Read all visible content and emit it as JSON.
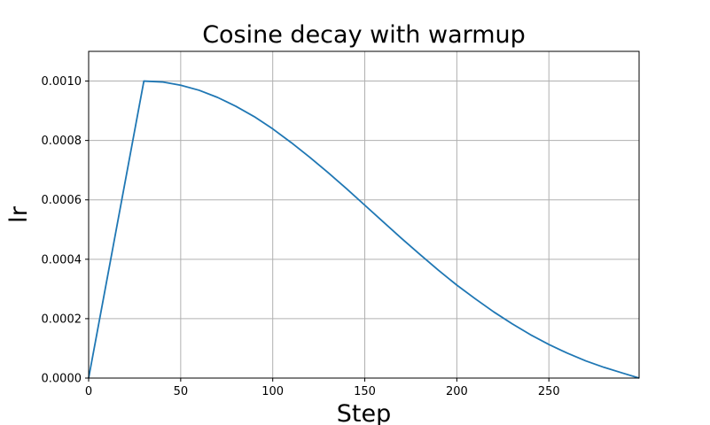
{
  "chart_data": {
    "type": "line",
    "title": "Cosine decay with warmup",
    "xlabel": "Step",
    "ylabel": "lr",
    "xlim": [
      0,
      299
    ],
    "ylim": [
      0,
      0.0011
    ],
    "xticks": [
      0,
      50,
      100,
      150,
      200,
      250
    ],
    "xtick_labels": [
      "0",
      "50",
      "100",
      "150",
      "200",
      "250"
    ],
    "yticks": [
      0,
      0.0002,
      0.0004,
      0.0006,
      0.0008,
      0.001
    ],
    "ytick_labels": [
      "0.0000",
      "0.0002",
      "0.0004",
      "0.0006",
      "0.0008",
      "0.0010"
    ],
    "grid": true,
    "series": [
      {
        "color": "#1f77b4",
        "x": [
          0,
          30,
          40,
          50,
          60,
          70,
          80,
          90,
          100,
          110,
          120,
          130,
          140,
          150,
          160,
          170,
          180,
          190,
          200,
          210,
          220,
          230,
          240,
          250,
          260,
          270,
          280,
          290,
          299
        ],
        "y": [
          0,
          0.001,
          0.000997,
          0.000986,
          0.000969,
          0.000945,
          0.000915,
          0.00088,
          0.000839,
          0.000793,
          0.000744,
          0.000692,
          0.000638,
          0.000582,
          0.000526,
          0.00047,
          0.000416,
          0.000363,
          0.000313,
          0.000267,
          0.000223,
          0.000183,
          0.000146,
          0.000113,
          8.4e-05,
          5.8e-05,
          3.6e-05,
          1.7e-05,
          0
        ]
      }
    ]
  }
}
